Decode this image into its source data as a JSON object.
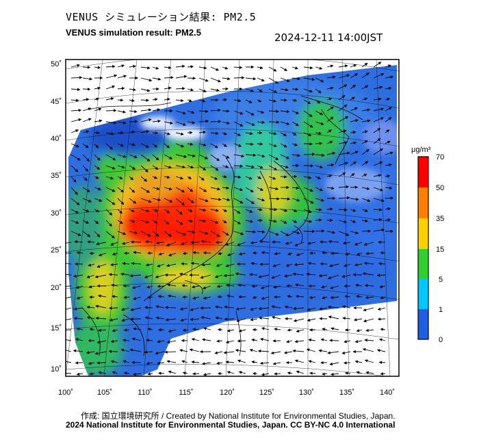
{
  "title": {
    "japanese": "VENUS シミュレーション結果: PM2.5",
    "english": "VENUS simulation result: PM2.5",
    "datetime": "2024-12-11 14:00JST"
  },
  "map": {
    "lat_labels": [
      "50˚",
      "45˚",
      "40˚",
      "35˚",
      "30˚",
      "25˚",
      "20˚",
      "15˚",
      "10˚"
    ],
    "lon_labels": [
      "100˚",
      "105˚",
      "110˚",
      "115˚",
      "120˚",
      "125˚",
      "130˚",
      "135˚",
      "140˚"
    ],
    "ocean_color": "#2e6ee0",
    "land_outside_color": "#ffffff"
  },
  "colorbar": {
    "unit": "μg/m³",
    "ticks": [
      "70",
      "50",
      "35",
      "15",
      "5",
      "1",
      "0"
    ],
    "colors": [
      "#ff0000",
      "#ff8000",
      "#ffd000",
      "#30d030",
      "#00c8ff",
      "#2060e0",
      "#ffffff"
    ]
  },
  "credits": {
    "line1": "作成: 国立環境研究所 / Created by National Institute for Environmental Studies, Japan.",
    "line2": "2024 National Institute for Environmental Studies, Japan. CC BY-NC 4.0 International"
  }
}
